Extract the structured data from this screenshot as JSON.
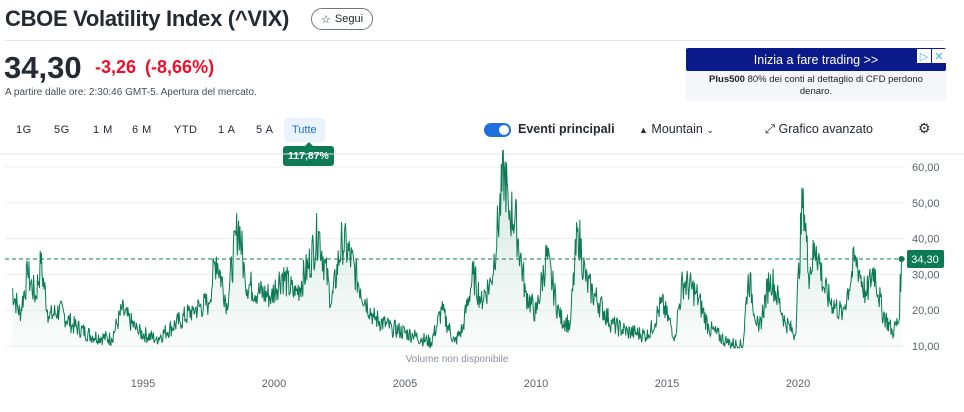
{
  "header": {
    "title": "CBOE Volatility Index (^VIX)",
    "follow_label": "Segui",
    "follow_icon": "star-icon"
  },
  "quote": {
    "price": "34,30",
    "change": "-3,26",
    "change_pct": "(-8,66%)",
    "as_of": "A partire dalle ore: 2:30:46 GMT-5. Apertura del mercato."
  },
  "ad": {
    "cta": "Inizia a fare trading >>",
    "brand": "Plus500",
    "disclaimer": " 80% dei conti al dettaglio di CFD perdono denaro.",
    "icons": [
      "adchoices-icon",
      "close-icon"
    ]
  },
  "ranges": [
    "1G",
    "5G",
    "1 M",
    "6 M",
    "YTD",
    "1 A",
    "5 A",
    "Tutte"
  ],
  "selected_range": "Tutte",
  "range_change": "117,87%",
  "toolbar": {
    "events_label": "Eventi principali",
    "events_on": true,
    "chart_type": "Mountain",
    "advanced": "Grafico avanzato"
  },
  "colors": {
    "line": "#0b7a55",
    "down": "#eb0f29",
    "accent": "#1f6ee0",
    "ad_bg": "#0b1a8a"
  },
  "chart_data": {
    "type": "area",
    "x_ticks": [
      "1995",
      "2000",
      "2005",
      "2010",
      "2015",
      "2020"
    ],
    "y_ticks": [
      "60,00",
      "50,00",
      "40,00",
      "30,00",
      "20,00",
      "10,00"
    ],
    "ylim": [
      8,
      62
    ],
    "xlim": [
      1989.7,
      2024.3
    ],
    "current_value": 34.3,
    "current_label": "34,30",
    "volume_note": "Volume non disponibile",
    "keypoints": [
      [
        1990,
        26
      ],
      [
        1990.3,
        19
      ],
      [
        1990.6,
        30
      ],
      [
        1990.9,
        24
      ],
      [
        1991.1,
        33
      ],
      [
        1991.4,
        18
      ],
      [
        1991.8,
        20
      ],
      [
        1992.3,
        16
      ],
      [
        1993,
        13
      ],
      [
        1993.8,
        12
      ],
      [
        1994.2,
        20
      ],
      [
        1994.8,
        14
      ],
      [
        1995.5,
        12
      ],
      [
        1996.4,
        17
      ],
      [
        1996.9,
        20
      ],
      [
        1997.5,
        22
      ],
      [
        1997.8,
        35
      ],
      [
        1998.2,
        22
      ],
      [
        1998.65,
        45
      ],
      [
        1998.9,
        28
      ],
      [
        1999.4,
        25
      ],
      [
        1999.9,
        24
      ],
      [
        2000.3,
        30
      ],
      [
        2000.8,
        24
      ],
      [
        2001.3,
        32
      ],
      [
        2001.7,
        42
      ],
      [
        2002.2,
        22
      ],
      [
        2002.6,
        40
      ],
      [
        2002.9,
        35
      ],
      [
        2003.3,
        26
      ],
      [
        2003.8,
        18
      ],
      [
        2004.5,
        15
      ],
      [
        2005.3,
        13
      ],
      [
        2006,
        11
      ],
      [
        2006.4,
        20
      ],
      [
        2006.9,
        11
      ],
      [
        2007.2,
        15
      ],
      [
        2007.6,
        30
      ],
      [
        2007.9,
        23
      ],
      [
        2008.3,
        28
      ],
      [
        2008.8,
        60
      ],
      [
        2008.95,
        48
      ],
      [
        2009.2,
        46
      ],
      [
        2009.6,
        25
      ],
      [
        2010,
        19
      ],
      [
        2010.4,
        35
      ],
      [
        2010.9,
        18
      ],
      [
        2011.3,
        16
      ],
      [
        2011.6,
        43
      ],
      [
        2011.9,
        28
      ],
      [
        2012.4,
        22
      ],
      [
        2012.9,
        16
      ],
      [
        2013.5,
        14
      ],
      [
        2014.3,
        13
      ],
      [
        2014.8,
        22
      ],
      [
        2015.3,
        13
      ],
      [
        2015.6,
        28
      ],
      [
        2016.1,
        25
      ],
      [
        2016.6,
        15
      ],
      [
        2017.3,
        11
      ],
      [
        2017.9,
        10
      ],
      [
        2018.1,
        30
      ],
      [
        2018.5,
        14
      ],
      [
        2018.95,
        30
      ],
      [
        2019.5,
        17
      ],
      [
        2019.9,
        13
      ],
      [
        2020.2,
        54
      ],
      [
        2020.4,
        30
      ],
      [
        2020.7,
        38
      ],
      [
        2021,
        26
      ],
      [
        2021.2,
        23
      ],
      [
        2021.7,
        19
      ],
      [
        2022.2,
        35
      ],
      [
        2022.6,
        24
      ],
      [
        2022.9,
        32
      ],
      [
        2023.2,
        20
      ],
      [
        2023.6,
        14
      ],
      [
        2023.85,
        17
      ],
      [
        2023.95,
        34.3
      ]
    ]
  }
}
